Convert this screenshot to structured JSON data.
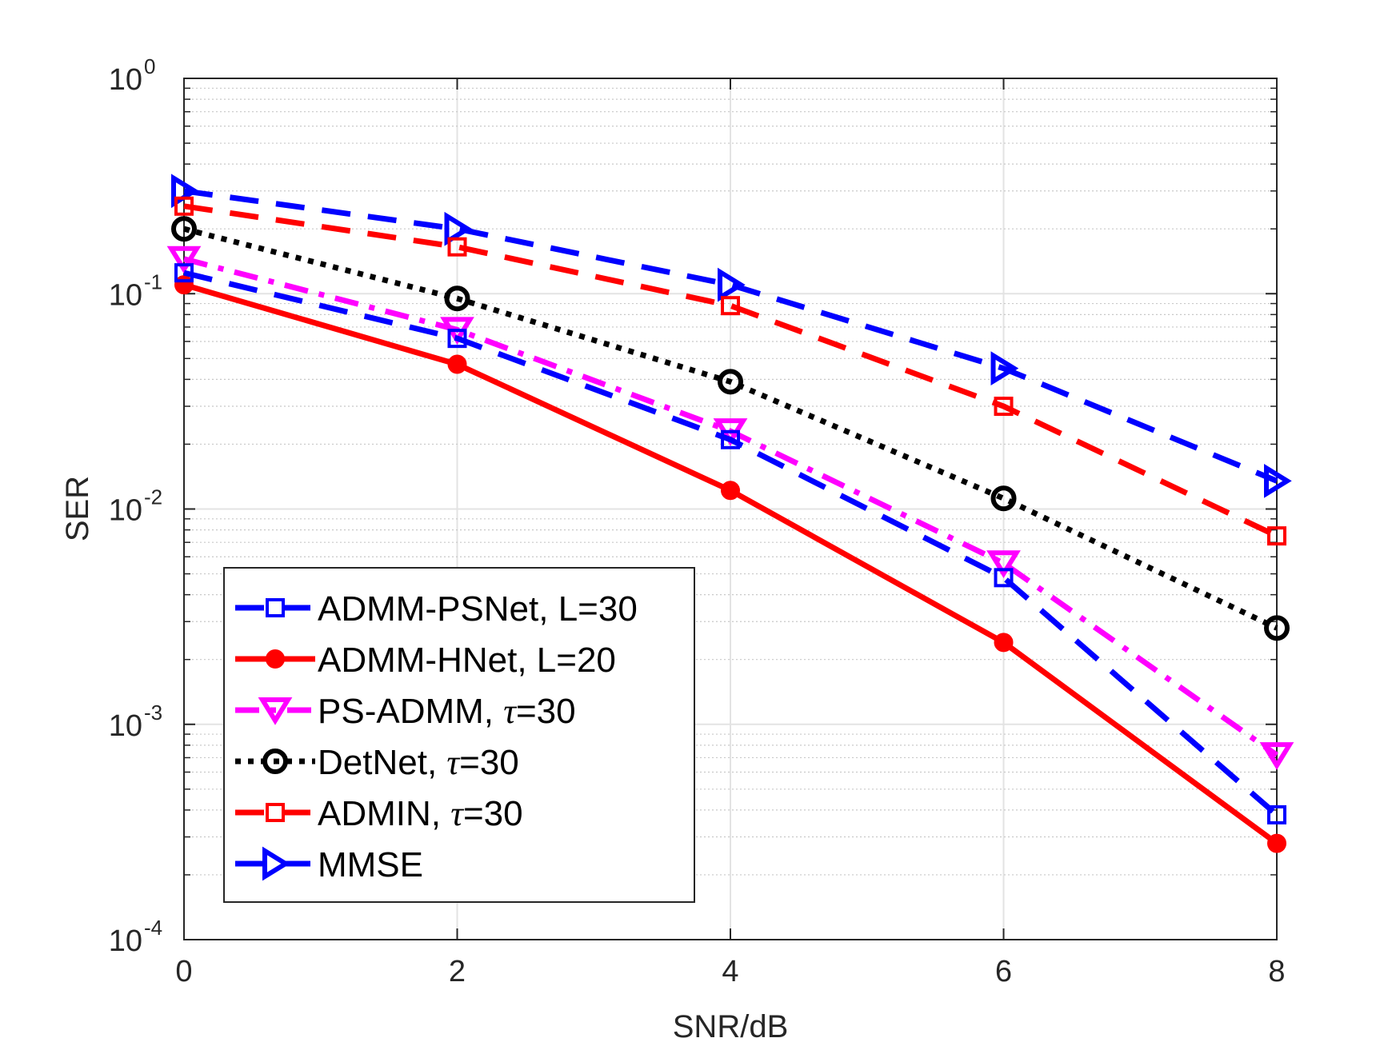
{
  "chart_data": {
    "type": "line",
    "title": "",
    "xlabel": "SNR/dB",
    "ylabel": "SER",
    "yscale": "log",
    "x": [
      0,
      2,
      4,
      6,
      8
    ],
    "xlim": [
      0,
      8
    ],
    "ylim": [
      0.0001,
      1
    ],
    "xticks": [
      0,
      2,
      4,
      6,
      8
    ],
    "yticks": [
      {
        "value": 1,
        "base": "10",
        "exp": "0"
      },
      {
        "value": 0.1,
        "base": "10",
        "exp": "-1"
      },
      {
        "value": 0.01,
        "base": "10",
        "exp": "-2"
      },
      {
        "value": 0.001,
        "base": "10",
        "exp": "-3"
      },
      {
        "value": 0.0001,
        "base": "10",
        "exp": "-4"
      }
    ],
    "grid": true,
    "legend_position": "bottom-left",
    "series": [
      {
        "name": "ADMM-PSNet, L=30",
        "label_main": "ADMM-PSNet, L=30",
        "label_tau": "",
        "label_tail": "",
        "color": "#0000ff",
        "dash": "dashed",
        "marker": "square-open",
        "values": [
          0.125,
          0.062,
          0.021,
          0.0048,
          0.00038
        ]
      },
      {
        "name": "ADMM-HNet, L=20",
        "label_main": "ADMM-HNet, L=20",
        "label_tau": "",
        "label_tail": "",
        "color": "#ff0000",
        "dash": "solid",
        "marker": "circle-filled",
        "values": [
          0.11,
          0.047,
          0.0122,
          0.0024,
          0.00028
        ]
      },
      {
        "name": "PS-ADMM, τ=30",
        "label_main": "PS-ADMM, ",
        "label_tau": "τ",
        "label_tail": "=30",
        "color": "#ff00ff",
        "dash": "dashdot",
        "marker": "triangle-down",
        "values": [
          0.145,
          0.068,
          0.023,
          0.0056,
          0.00072
        ]
      },
      {
        "name": "DetNet, τ=30",
        "label_main": "DetNet, ",
        "label_tau": "τ",
        "label_tail": "=30",
        "color": "#000000",
        "dash": "dotted",
        "marker": "circle-open",
        "values": [
          0.2,
          0.095,
          0.039,
          0.0112,
          0.0028
        ]
      },
      {
        "name": "ADMIN, τ=30",
        "label_main": "ADMIN, ",
        "label_tau": "τ",
        "label_tail": "=30",
        "color": "#ff0000",
        "dash": "dashed",
        "marker": "square-open",
        "values": [
          0.255,
          0.165,
          0.088,
          0.03,
          0.0075
        ]
      },
      {
        "name": "MMSE",
        "label_main": "MMSE",
        "label_tau": "",
        "label_tail": "",
        "color": "#0000ff",
        "dash": "dashed",
        "marker": "triangle-right",
        "values": [
          0.3,
          0.2,
          0.11,
          0.045,
          0.0135
        ]
      }
    ]
  }
}
